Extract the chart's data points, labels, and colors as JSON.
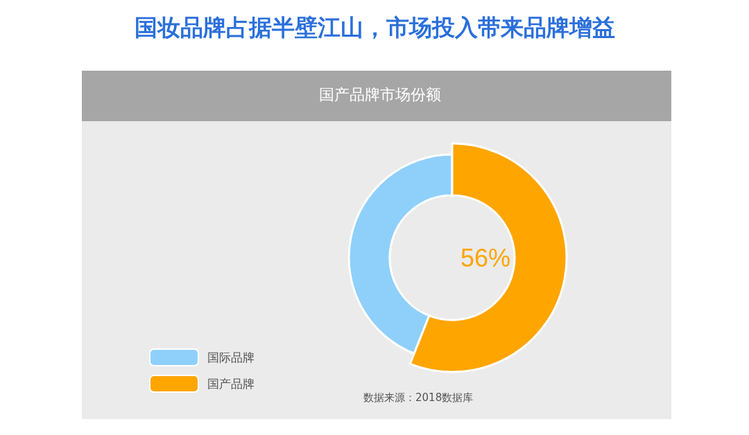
{
  "chart_data": {
    "type": "donut",
    "title": "国妆品牌占据半壁江山，市场投入带来品牌增益",
    "subtitle": "国产品牌市场份额",
    "categories": [
      "国际品牌",
      "国产品牌"
    ],
    "values": [
      44,
      56
    ],
    "colors": [
      "#8fd0fb",
      "#ffa500"
    ],
    "value_labels": [
      null,
      "56%"
    ],
    "legend": "bottom left",
    "annotations": [
      "数据来源：2018数据库"
    ]
  }
}
